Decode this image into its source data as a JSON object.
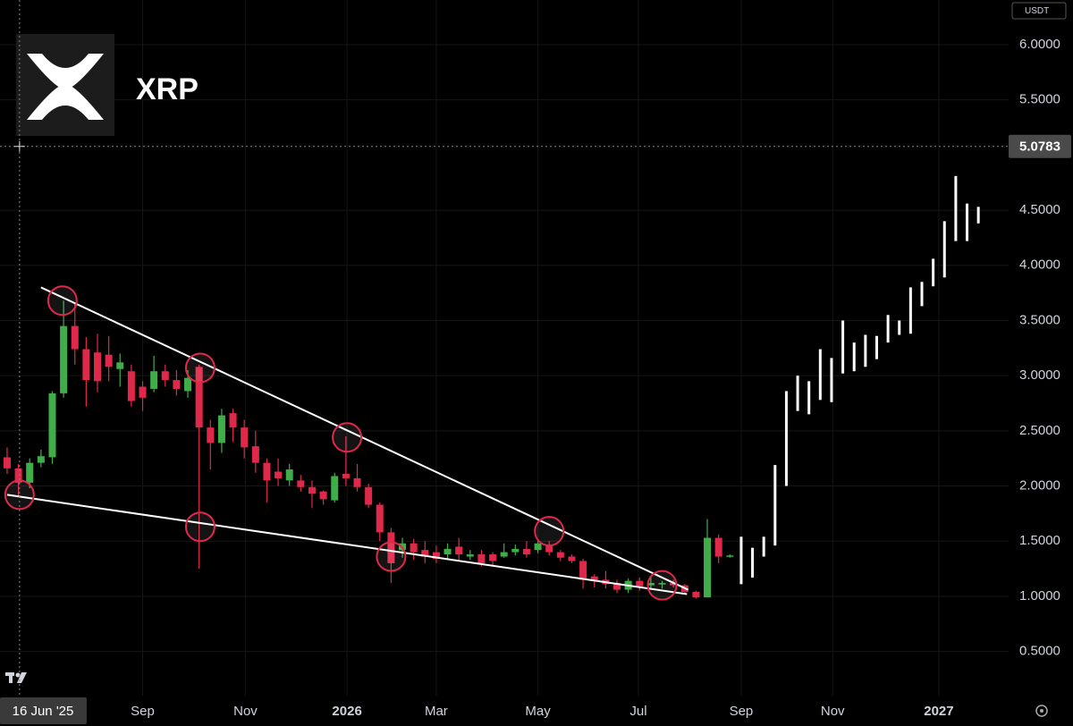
{
  "chart_data": {
    "type": "candlestick",
    "title": "XRP",
    "currency": "USDT",
    "up_color": "#3fae49",
    "down_color": "#e0294a",
    "open": [
      2.26,
      2.16,
      2.03,
      2.21,
      2.26,
      2.84,
      3.45,
      3.24,
      3.21,
      3.19,
      3.06,
      3.04,
      2.9,
      2.88,
      3.04,
      2.96,
      2.86,
      3.08,
      2.53,
      2.39,
      2.66,
      2.53,
      2.36,
      2.21,
      2.13,
      2.05,
      2.05,
      1.99,
      1.95,
      1.87,
      2.11,
      2.07,
      1.99,
      1.83,
      1.58,
      1.42,
      1.48,
      1.42,
      1.4,
      1.38,
      1.45,
      1.36,
      1.38,
      1.38,
      1.36,
      1.4,
      1.43,
      1.42,
      1.46,
      1.4,
      1.36,
      1.32,
      1.18,
      1.15,
      1.12,
      1.06,
      1.14,
      1.1,
      1.11,
      1.12,
      1.1,
      1.04,
      0.99,
      1.53,
      1.36
    ],
    "high": [
      2.35,
      2.2,
      2.25,
      2.33,
      2.86,
      3.68,
      3.65,
      3.35,
      3.38,
      3.36,
      3.2,
      3.1,
      2.95,
      3.18,
      3.1,
      3.05,
      3.05,
      3.1,
      2.6,
      2.7,
      2.7,
      2.6,
      2.5,
      2.25,
      2.25,
      2.2,
      2.1,
      2.05,
      1.96,
      2.12,
      2.45,
      2.2,
      2.02,
      1.85,
      1.62,
      1.53,
      1.52,
      1.5,
      1.46,
      1.48,
      1.53,
      1.42,
      1.42,
      1.4,
      1.48,
      1.47,
      1.5,
      1.5,
      1.5,
      1.42,
      1.38,
      1.34,
      1.2,
      1.23,
      1.15,
      1.16,
      1.17,
      1.17,
      1.14,
      1.15,
      1.11,
      1.05,
      1.7,
      1.56,
      1.38
    ],
    "low": [
      2.11,
      1.9,
      1.98,
      2.17,
      2.2,
      2.8,
      3.1,
      2.72,
      2.85,
      2.95,
      2.9,
      2.72,
      2.68,
      2.85,
      2.9,
      2.82,
      2.8,
      1.25,
      2.15,
      2.3,
      2.4,
      2.25,
      2.12,
      1.85,
      2.0,
      2.0,
      1.95,
      1.8,
      1.83,
      1.85,
      2.0,
      1.95,
      1.8,
      1.5,
      1.12,
      1.35,
      1.33,
      1.3,
      1.3,
      1.33,
      1.33,
      1.33,
      1.27,
      1.28,
      1.35,
      1.37,
      1.35,
      1.39,
      1.37,
      1.32,
      1.3,
      1.07,
      1.08,
      1.07,
      1.03,
      1.03,
      1.05,
      1.06,
      1.07,
      1.08,
      1.02,
      0.98,
      0.99,
      1.3,
      1.35
    ],
    "close": [
      2.16,
      2.03,
      2.21,
      2.27,
      2.84,
      3.45,
      3.24,
      2.96,
      2.95,
      3.08,
      3.12,
      2.77,
      2.8,
      3.04,
      2.96,
      2.88,
      2.98,
      2.53,
      2.39,
      2.64,
      2.53,
      2.35,
      2.21,
      2.05,
      2.07,
      2.15,
      1.99,
      1.93,
      1.88,
      2.09,
      2.07,
      1.99,
      1.83,
      1.58,
      1.3,
      1.48,
      1.4,
      1.36,
      1.34,
      1.43,
      1.38,
      1.38,
      1.3,
      1.32,
      1.4,
      1.43,
      1.38,
      1.48,
      1.4,
      1.35,
      1.32,
      1.15,
      1.14,
      1.11,
      1.06,
      1.14,
      1.09,
      1.12,
      1.12,
      1.1,
      1.04,
      0.99,
      1.53,
      1.36,
      1.37
    ],
    "projection": {
      "color": "#ffffff",
      "x": [
        65,
        66,
        67,
        68,
        69,
        70,
        71,
        72,
        73,
        74,
        75,
        76,
        77,
        78,
        79,
        80,
        81,
        82,
        83,
        84,
        85,
        86
      ],
      "high": [
        1.54,
        1.44,
        1.54,
        2.19,
        2.86,
        3.0,
        2.95,
        3.24,
        3.16,
        3.5,
        3.3,
        3.37,
        3.36,
        3.55,
        3.5,
        3.8,
        3.85,
        4.06,
        4.4,
        4.81,
        4.56,
        4.53
      ],
      "low": [
        1.11,
        1.17,
        1.36,
        1.46,
        2.0,
        2.68,
        2.65,
        2.78,
        2.76,
        3.02,
        3.04,
        3.08,
        3.15,
        3.3,
        3.37,
        3.38,
        3.63,
        3.81,
        3.89,
        4.22,
        4.22,
        4.38
      ]
    },
    "trendlines": [
      {
        "color": "#ffffff",
        "x": [
          3.0,
          60.3
        ],
        "y": [
          3.8,
          1.06
        ]
      },
      {
        "color": "#ffffff",
        "x": [
          0,
          60.2
        ],
        "y": [
          1.92,
          1.02
        ]
      }
    ],
    "circled_points": {
      "color": "#e0294a",
      "x": [
        1.1,
        4.9,
        17.1,
        17.1,
        30.1,
        34.0,
        48.0,
        58.0
      ],
      "y": [
        1.92,
        3.68,
        3.07,
        1.63,
        2.44,
        1.36,
        1.59,
        1.1
      ]
    },
    "crosshair": {
      "price": {
        "value": 5.0783,
        "label": "5.0783"
      },
      "date": {
        "value": 1.1,
        "label": "16 Jun '25"
      }
    },
    "xlim": [
      -0.63,
      88.68
    ],
    "ylim": [
      0.1,
      6.405
    ],
    "grid": true,
    "yticks": [
      {
        "value": 0.5,
        "label": "0.5000"
      },
      {
        "value": 1,
        "label": "1.0000"
      },
      {
        "value": 1.5,
        "label": "1.5000"
      },
      {
        "value": 2,
        "label": "2.0000"
      },
      {
        "value": 2.5,
        "label": "2.5000"
      },
      {
        "value": 3,
        "label": "3.0000"
      },
      {
        "value": 3.5,
        "label": "3.5000"
      },
      {
        "value": 4,
        "label": "4.0000"
      },
      {
        "value": 4.5,
        "label": "4.5000"
      },
      {
        "value": 5.5,
        "label": "5.5000"
      },
      {
        "value": 6,
        "label": "6.0000"
      }
    ],
    "xticks": [
      {
        "value": 12.0,
        "label": "Sep"
      },
      {
        "value": 21.1,
        "label": "Nov"
      },
      {
        "value": 30.1,
        "label": "2026"
      },
      {
        "value": 38.0,
        "label": "Mar"
      },
      {
        "value": 47.0,
        "label": "May"
      },
      {
        "value": 55.9,
        "label": "Jul"
      },
      {
        "value": 65.0,
        "label": "Sep"
      },
      {
        "value": 73.1,
        "label": "Nov"
      },
      {
        "value": 82.5,
        "label": "2027"
      }
    ]
  }
}
